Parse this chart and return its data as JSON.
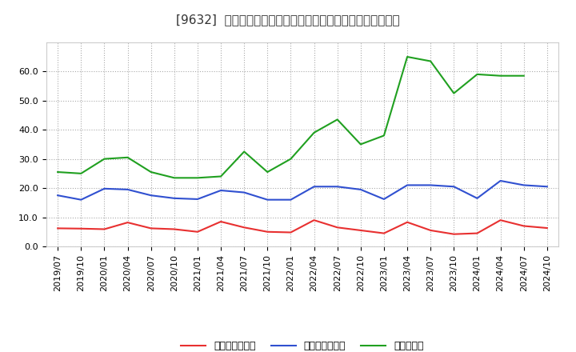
{
  "title": "[9632]  売上債権回転率、買入債務回転率、在庫回転率の推移",
  "dates": [
    "2019/07",
    "2019/10",
    "2020/01",
    "2020/04",
    "2020/07",
    "2020/10",
    "2021/01",
    "2021/04",
    "2021/07",
    "2021/10",
    "2022/01",
    "2022/04",
    "2022/07",
    "2022/10",
    "2023/01",
    "2023/04",
    "2023/07",
    "2023/10",
    "2024/01",
    "2024/04",
    "2024/07",
    "2024/10"
  ],
  "receivables_turnover": [
    6.2,
    6.1,
    5.9,
    8.2,
    6.2,
    5.9,
    5.0,
    8.5,
    6.5,
    5.0,
    4.8,
    9.0,
    6.5,
    5.5,
    4.5,
    8.3,
    5.5,
    4.2,
    4.5,
    9.0,
    7.0,
    6.3
  ],
  "payables_turnover": [
    17.5,
    16.0,
    19.8,
    19.5,
    17.5,
    16.5,
    16.2,
    19.2,
    18.5,
    16.0,
    16.0,
    20.5,
    20.5,
    19.5,
    16.2,
    21.0,
    21.0,
    20.5,
    16.5,
    22.5,
    21.0,
    20.5
  ],
  "inventory_turnover": [
    25.5,
    25.0,
    30.0,
    30.5,
    25.5,
    23.5,
    23.5,
    24.0,
    32.5,
    25.5,
    30.0,
    39.0,
    43.5,
    35.0,
    38.0,
    65.0,
    63.5,
    52.5,
    59.0,
    58.5,
    58.5,
    null
  ],
  "line_colors": {
    "receivables": "#e83030",
    "payables": "#3050d0",
    "inventory": "#20a020"
  },
  "legend_labels": [
    "売上債権回転率",
    "買入債務回転率",
    "在庫回転率"
  ],
  "ylim": [
    0.0,
    70.0
  ],
  "yticks": [
    0.0,
    10.0,
    20.0,
    30.0,
    40.0,
    50.0,
    60.0
  ],
  "background_color": "#ffffff",
  "plot_bg_color": "#ffffff",
  "grid_color": "#aaaaaa",
  "title_fontsize": 11,
  "tick_fontsize": 8,
  "legend_fontsize": 9
}
